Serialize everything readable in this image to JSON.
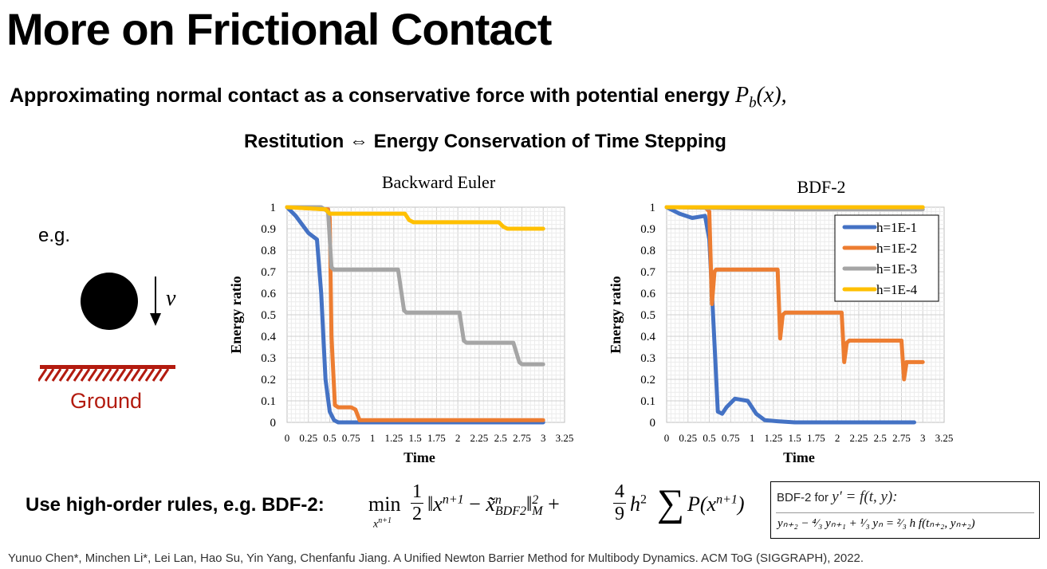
{
  "slide": {
    "title": "More on Frictional Contact",
    "subtitle": "Approximating normal contact as a conservative force with potential energy",
    "subtitle_math": "P",
    "subtitle_math_sub": "b",
    "subtitle_math_tail": "(x),",
    "restitution": "Restitution ⇔ Energy Conservation of Time Stepping",
    "example_label": "e.g.",
    "velocity_label": "v",
    "ground_label": "Ground",
    "bottom_label": "Use high-order rules, e.g. BDF-2:",
    "formula": {
      "min": "min",
      "min_sub": "x",
      "min_sub_sup": "n+1",
      "half_num": "1",
      "half_den": "2",
      "norm": "‖x",
      "norm_sup": "n+1",
      "minus": " − ",
      "xtilde": "x̃",
      "xtilde_sup": "n",
      "xtilde_sub": "BDF2",
      "norm_close": "‖",
      "norm_close_sup": "2",
      "norm_close_sub": "M",
      "plus": " + ",
      "frac_num": "4",
      "frac_den": "9",
      "h": "h",
      "h_sup": "2",
      "sum": "∑",
      "P": "P(x",
      "P_sup": "n+1",
      "P_close": ")"
    },
    "bdf_box": {
      "line1_text": "BDF-2 for",
      "line1_math": "y′ = f(t, y):",
      "line2": "yₙ₊₂ − ⁴⁄₃ yₙ₊₁ + ¹⁄₃ yₙ = ²⁄₃ h f(tₙ₊₂, yₙ₊₂)"
    },
    "citation": "Yunuo Chen*, Minchen Li*, Lei Lan, Hao Su, Yin Yang, Chenfanfu Jiang. A Unified Newton Barrier Method for Multibody Dynamics. ACM ToG (SIGGRAPH), 2022.",
    "colors": {
      "accent_red": "#b31b0f",
      "series_blue": "#4472c4",
      "series_orange": "#ed7d31",
      "series_gray": "#a5a5a5",
      "series_yellow": "#ffc000"
    }
  },
  "chart_data": [
    {
      "type": "line",
      "title": "Backward Euler",
      "xlabel": "Time",
      "ylabel": "Energy ratio",
      "xlim": [
        0,
        3.25
      ],
      "ylim": [
        0,
        1
      ],
      "xticks": [
        "0",
        "0.25",
        "0.5",
        "0.75",
        "1",
        "1.25",
        "1.5",
        "1.75",
        "2",
        "2.25",
        "2.5",
        "2.75",
        "3",
        "3.25"
      ],
      "yticks": [
        "0",
        "0.1",
        "0.2",
        "0.3",
        "0.4",
        "0.5",
        "0.6",
        "0.7",
        "0.8",
        "0.9",
        "1"
      ],
      "grid": true,
      "legend": "none",
      "series": [
        {
          "color": "#4472c4",
          "x": [
            0,
            0.1,
            0.25,
            0.35,
            0.4,
            0.45,
            0.5,
            0.55,
            0.6,
            0.8,
            1.5,
            3.0
          ],
          "y": [
            1,
            0.96,
            0.88,
            0.85,
            0.6,
            0.2,
            0.05,
            0.01,
            0,
            0,
            0,
            0
          ]
        },
        {
          "color": "#ed7d31",
          "x": [
            0,
            0.48,
            0.5,
            0.52,
            0.56,
            0.6,
            0.75,
            0.8,
            0.85,
            1.5,
            3.0
          ],
          "y": [
            1,
            0.99,
            0.95,
            0.4,
            0.08,
            0.07,
            0.07,
            0.06,
            0.01,
            0.01,
            0.01
          ]
        },
        {
          "color": "#a5a5a5",
          "x": [
            0,
            0.4,
            0.48,
            0.52,
            0.55,
            1.3,
            1.37,
            1.4,
            2.02,
            2.07,
            2.1,
            2.65,
            2.72,
            2.75,
            3.0
          ],
          "y": [
            1,
            1,
            0.98,
            0.72,
            0.71,
            0.71,
            0.52,
            0.51,
            0.51,
            0.38,
            0.37,
            0.37,
            0.28,
            0.27,
            0.27
          ]
        },
        {
          "color": "#ffc000",
          "x": [
            0,
            0.45,
            0.5,
            0.55,
            1.38,
            1.43,
            1.48,
            2.48,
            2.53,
            2.58,
            3.0
          ],
          "y": [
            1,
            0.99,
            0.97,
            0.97,
            0.97,
            0.94,
            0.93,
            0.93,
            0.91,
            0.9,
            0.9
          ]
        }
      ]
    },
    {
      "type": "line",
      "title": "BDF-2",
      "xlabel": "Time",
      "ylabel": "Energy ratio",
      "xlim": [
        0,
        3.25
      ],
      "ylim": [
        0,
        1
      ],
      "xticks": [
        "0",
        "0.25",
        "0.5",
        "0.75",
        "1",
        "1.25",
        "1.5",
        "1.75",
        "2",
        "2.25",
        "2.5",
        "2.75",
        "3",
        "3.25"
      ],
      "yticks": [
        "0",
        "0.1",
        "0.2",
        "0.3",
        "0.4",
        "0.5",
        "0.6",
        "0.7",
        "0.8",
        "0.9",
        "1"
      ],
      "grid": true,
      "legend": "top-right",
      "series": [
        {
          "name": "h=1E-1",
          "color": "#4472c4",
          "x": [
            0,
            0.15,
            0.3,
            0.45,
            0.5,
            0.55,
            0.6,
            0.65,
            0.7,
            0.8,
            0.95,
            1.05,
            1.15,
            1.3,
            1.5,
            2.0,
            2.9
          ],
          "y": [
            1,
            0.97,
            0.95,
            0.96,
            0.85,
            0.45,
            0.05,
            0.04,
            0.07,
            0.11,
            0.1,
            0.04,
            0.01,
            0.005,
            0,
            0,
            0
          ]
        },
        {
          "name": "h=1E-2",
          "color": "#ed7d31",
          "x": [
            0,
            0.45,
            0.5,
            0.53,
            0.56,
            0.58,
            1.3,
            1.33,
            1.36,
            1.39,
            2.05,
            2.08,
            2.11,
            2.14,
            2.75,
            2.78,
            2.81,
            2.84,
            3.0
          ],
          "y": [
            1,
            1,
            0.98,
            0.55,
            0.7,
            0.71,
            0.71,
            0.39,
            0.5,
            0.51,
            0.51,
            0.28,
            0.37,
            0.38,
            0.38,
            0.2,
            0.28,
            0.28,
            0.28
          ]
        },
        {
          "name": "h=1E-3",
          "color": "#a5a5a5",
          "x": [
            0,
            1.5,
            3.0
          ],
          "y": [
            1,
            0.99,
            0.99
          ]
        },
        {
          "name": "h=1E-4",
          "color": "#ffc000",
          "x": [
            0,
            3.0
          ],
          "y": [
            1,
            1
          ]
        }
      ]
    }
  ]
}
